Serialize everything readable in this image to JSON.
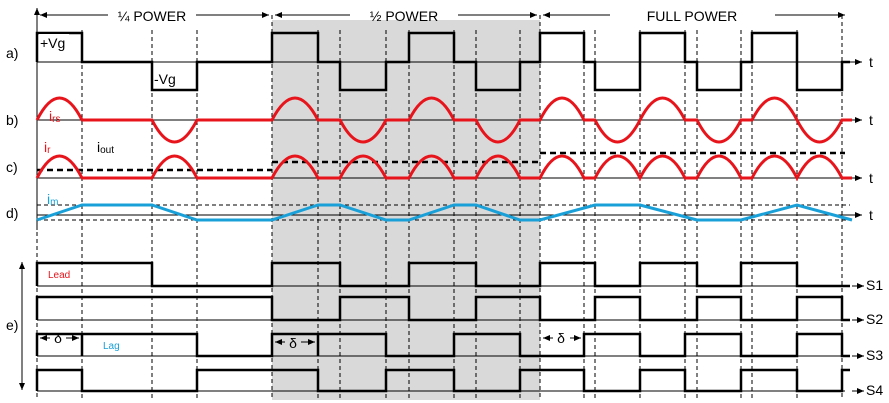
{
  "sections": {
    "quarter": "¼ POWER",
    "half": "½ POWER",
    "full": "FULL POWER"
  },
  "rows": {
    "a": "a)",
    "b": "b)",
    "c": "c)",
    "d": "d)",
    "e": "e)"
  },
  "time_label": "t",
  "signals": {
    "plus_vg": "+Vg",
    "minus_vg": "-Vg",
    "irs_main": "i",
    "irs_sub": "rs",
    "ir_main": "i",
    "ir_sub": "r",
    "iout_main": "i",
    "iout_sub": "out",
    "im_main": "i",
    "im_sub": "m"
  },
  "annotations": {
    "lead": "Lead",
    "lag": "Lag",
    "delta": "δ"
  },
  "switches": [
    "S1",
    "S2",
    "S3",
    "S4"
  ],
  "colors": {
    "resonant_current": "#e8141b",
    "magnetizing_current": "#1aa0d8",
    "shade": "#d9d9d9",
    "trace": "#000000"
  }
}
